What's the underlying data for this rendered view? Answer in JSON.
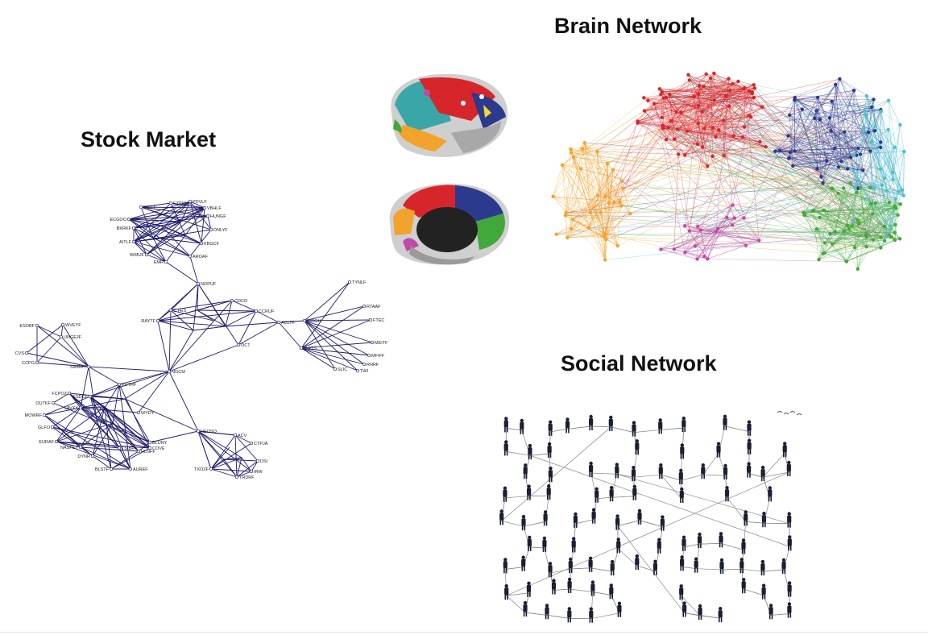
{
  "panels": {
    "stock": {
      "title": "Stock Market",
      "edge_color": "#1f1b6b",
      "node_labels": [
        "DGTT",
        "EZPW",
        "PDVLF",
        "VBHLF",
        "HUNGF",
        "ECGOO",
        "BKRKF",
        "DNLYF",
        "AITLF",
        "KBGCF",
        "BOBJF",
        "AROAF",
        "EMR",
        "NOPUF",
        "CDCO",
        "C.FES",
        "CCRUF",
        "RAYTF",
        "ACLTF",
        "WRGH",
        "OCT",
        "TYNLF",
        "RTAAF",
        "FTEC",
        "MEITF",
        "C.PTS",
        "MFIFF",
        "RNRF",
        "SLIC",
        "TWI",
        "ESOBF",
        "WVEYF",
        "UNGEJF",
        "CVS",
        "CCPG",
        "SWRBY",
        "NGCM",
        "PUTRF",
        "ESDCF",
        "FCPOZ",
        "OUTKF",
        "SAVXY",
        "WYDY",
        "MOWRF",
        "GLFO",
        "EURAF",
        "NASFEY",
        "DYNR",
        "BLSTF",
        "AUREF",
        "TSIBF",
        "HLNFF",
        "COVE",
        "BLUNY",
        "NEOSQ",
        "ACV",
        "CTPJA",
        "DSI",
        "TXOZF",
        "TRDRF",
        "IRW"
      ]
    },
    "brain": {
      "title": "Brain Network",
      "module_colors": [
        "#d7262b",
        "#2b3a8c",
        "#43a83b",
        "#f2a32c",
        "#4dbfd0",
        "#c04aa7"
      ]
    },
    "social": {
      "title": "Social Network",
      "edge_color": "#8a8a8a",
      "figure_color": "#1b1f33"
    }
  }
}
